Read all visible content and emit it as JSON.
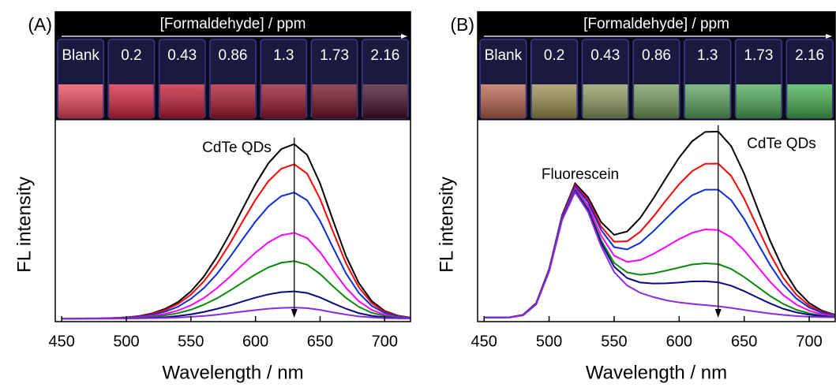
{
  "chart_data": [
    {
      "type": "line",
      "panel_label": "(A)",
      "photo_title": "[Formaldehyde] / ppm",
      "annotations": [
        "CdTe QDs"
      ],
      "x_label": "Wavelength / nm",
      "y_label": "FL intensity",
      "x": [
        450,
        460,
        470,
        480,
        490,
        500,
        510,
        520,
        530,
        540,
        550,
        560,
        570,
        580,
        590,
        600,
        610,
        620,
        630,
        640,
        650,
        660,
        670,
        680,
        690,
        700,
        710,
        720
      ],
      "xlim": [
        445,
        720
      ],
      "xticks": [
        450,
        500,
        550,
        600,
        650,
        700
      ],
      "ylim": [
        0,
        100
      ],
      "series": [
        {
          "name": "Blank",
          "color": "#000000",
          "values": [
            1.5,
            1.5,
            1.6,
            1.6,
            1.8,
            2.1,
            2.8,
            4.1,
            6.3,
            9.7,
            15.0,
            22.3,
            32.0,
            43.4,
            55.9,
            68.1,
            78.5,
            85.5,
            88.0,
            82.6,
            68.5,
            50.2,
            32.6,
            19.1,
            10.2,
            5.3,
            3.0,
            2.0
          ]
        },
        {
          "name": "0.2",
          "color": "#ff0000",
          "values": [
            1.5,
            1.5,
            1.5,
            1.6,
            1.8,
            2.1,
            2.7,
            3.8,
            5.7,
            8.8,
            13.4,
            19.9,
            28.4,
            38.5,
            49.6,
            60.4,
            69.6,
            75.8,
            78.0,
            73.3,
            60.8,
            44.6,
            29.0,
            17.0,
            9.2,
            4.9,
            2.8,
            2.0
          ]
        },
        {
          "name": "0.43",
          "color": "#0a2ed8",
          "values": [
            1.5,
            1.5,
            1.5,
            1.6,
            1.7,
            2.0,
            2.5,
            3.4,
            4.9,
            7.4,
            11.3,
            16.6,
            23.5,
            31.8,
            40.8,
            49.6,
            57.1,
            62.2,
            64.0,
            60.1,
            49.9,
            36.7,
            24.0,
            14.2,
            7.8,
            4.3,
            2.6,
            1.9
          ]
        },
        {
          "name": "0.86",
          "color": "#ff00ff",
          "values": [
            1.5,
            1.5,
            1.5,
            1.6,
            1.6,
            1.8,
            2.2,
            2.8,
            3.8,
            5.5,
            8.1,
            11.7,
            16.5,
            22.1,
            28.2,
            34.2,
            39.3,
            42.8,
            44.0,
            41.4,
            34.4,
            25.4,
            16.8,
            10.1,
            5.8,
            3.4,
            2.2,
            1.8
          ]
        },
        {
          "name": "1.3",
          "color": "#0a8a0a",
          "values": [
            1.5,
            1.5,
            1.5,
            1.5,
            1.6,
            1.7,
            1.9,
            2.4,
            3.1,
            4.2,
            5.9,
            8.4,
            11.5,
            15.3,
            19.4,
            23.4,
            26.9,
            29.2,
            30.0,
            28.2,
            23.6,
            17.5,
            11.8,
            7.3,
            4.4,
            2.8,
            2.0,
            1.7
          ]
        },
        {
          "name": "1.73",
          "color": "#0a0a80",
          "values": [
            1.5,
            1.5,
            1.5,
            1.5,
            1.5,
            1.6,
            1.7,
            1.9,
            2.2,
            2.8,
            3.6,
            4.8,
            6.3,
            8.0,
            10.0,
            11.9,
            13.5,
            14.6,
            15.0,
            14.2,
            12.0,
            9.1,
            6.4,
            4.2,
            2.9,
            2.1,
            1.7,
            1.6
          ]
        },
        {
          "name": "2.16",
          "color": "#8a2be2",
          "values": [
            1.5,
            1.5,
            1.5,
            1.5,
            1.5,
            1.5,
            1.6,
            1.7,
            1.8,
            2.0,
            2.4,
            2.8,
            3.4,
            4.2,
            5.0,
            5.7,
            6.4,
            6.8,
            7.0,
            6.7,
            5.8,
            4.6,
            3.5,
            2.6,
            2.1,
            1.7,
            1.6,
            1.5
          ]
        }
      ]
    },
    {
      "type": "line",
      "panel_label": "(B)",
      "photo_title": "[Formaldehyde] / ppm",
      "annotations": [
        "CdTe QDs",
        "Fluorescein"
      ],
      "x_label": "Wavelength / nm",
      "y_label": "FL intensity",
      "x": [
        450,
        460,
        470,
        480,
        490,
        500,
        510,
        520,
        530,
        540,
        550,
        560,
        570,
        580,
        590,
        600,
        610,
        620,
        630,
        640,
        650,
        660,
        670,
        680,
        690,
        700,
        710,
        720
      ],
      "xlim": [
        445,
        720
      ],
      "xticks": [
        450,
        500,
        550,
        600,
        650,
        700
      ],
      "ylim": [
        0,
        100
      ],
      "series": [
        {
          "name": "Blank",
          "color": "#000000",
          "values": [
            2.0,
            2.1,
            2.2,
            3.4,
            9.2,
            26.1,
            52.8,
            68.5,
            61.6,
            49.3,
            43.0,
            44.7,
            51.3,
            60.9,
            71.3,
            81.3,
            89.4,
            94.0,
            94.2,
            87.0,
            73.3,
            56.6,
            40.0,
            26.0,
            15.8,
            9.2,
            5.4,
            3.4
          ]
        },
        {
          "name": "0.2",
          "color": "#ff0000",
          "values": [
            2.0,
            2.1,
            2.2,
            3.4,
            9.0,
            25.9,
            52.3,
            67.7,
            60.3,
            47.1,
            39.6,
            39.8,
            44.5,
            51.9,
            60.2,
            68.1,
            74.6,
            78.2,
            78.3,
            72.2,
            60.9,
            47.1,
            33.4,
            21.8,
            13.4,
            8.0,
            4.8,
            3.2
          ]
        },
        {
          "name": "0.43",
          "color": "#0a2ed8",
          "values": [
            2.0,
            2.0,
            2.2,
            3.3,
            8.9,
            25.7,
            52.0,
            67.0,
            59.2,
            45.4,
            36.9,
            35.8,
            39.0,
            44.7,
            51.1,
            57.4,
            62.6,
            65.4,
            65.4,
            60.2,
            50.8,
            39.3,
            28.0,
            18.4,
            11.5,
            7.0,
            4.4,
            3.0
          ]
        },
        {
          "name": "0.86",
          "color": "#ff00ff",
          "values": [
            2.0,
            2.0,
            2.2,
            3.2,
            8.8,
            25.4,
            51.4,
            66.0,
            57.5,
            42.6,
            32.7,
            29.6,
            30.5,
            33.5,
            37.1,
            40.9,
            44.0,
            45.7,
            45.4,
            41.8,
            35.3,
            27.5,
            19.7,
            13.2,
            8.5,
            5.4,
            3.6,
            2.7
          ]
        },
        {
          "name": "1.3",
          "color": "#0a8a0a",
          "values": [
            2.0,
            2.0,
            2.1,
            3.2,
            8.7,
            25.2,
            51.0,
            65.2,
            56.0,
            40.3,
            29.1,
            24.4,
            23.2,
            23.9,
            25.3,
            26.8,
            28.3,
            28.9,
            28.5,
            26.1,
            22.1,
            17.4,
            12.7,
            8.8,
            5.9,
            4.1,
            3.0,
            2.4
          ]
        },
        {
          "name": "1.73",
          "color": "#0a0a80",
          "values": [
            2.0,
            2.0,
            2.1,
            3.2,
            8.6,
            25.0,
            50.7,
            64.7,
            55.3,
            39.1,
            27.2,
            21.6,
            19.4,
            18.9,
            19.0,
            19.4,
            19.9,
            20.0,
            19.5,
            17.8,
            15.1,
            12.0,
            9.0,
            6.4,
            4.6,
            3.4,
            2.7,
            2.2
          ]
        },
        {
          "name": "2.16",
          "color": "#8a2be2",
          "values": [
            2.0,
            2.0,
            2.1,
            3.1,
            8.5,
            24.8,
            50.4,
            64.2,
            54.3,
            37.4,
            24.6,
            17.9,
            14.3,
            12.2,
            10.6,
            9.5,
            8.8,
            8.2,
            7.6,
            6.8,
            5.8,
            4.9,
            4.0,
            3.3,
            2.8,
            2.4,
            2.2,
            2.1
          ]
        }
      ]
    }
  ]
}
